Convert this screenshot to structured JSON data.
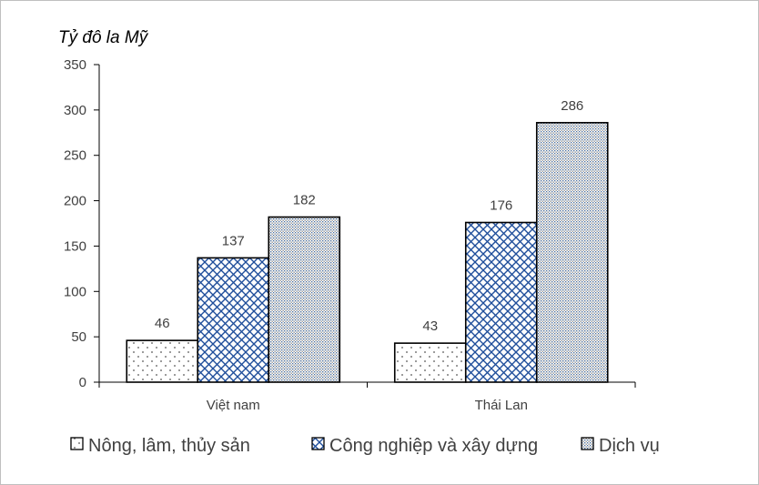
{
  "chart_data": {
    "type": "bar",
    "ylabel": "Tỷ đô la Mỹ",
    "categories": [
      "Việt nam",
      "Thái Lan"
    ],
    "ylim": [
      0,
      350
    ],
    "yticks": [
      0,
      50,
      100,
      150,
      200,
      250,
      300,
      350
    ],
    "grid": false,
    "legend_position": "bottom",
    "series": [
      {
        "name": "Nông, lâm, thủy sản",
        "values": [
          46,
          43
        ],
        "pattern": "dots"
      },
      {
        "name": "Công nghiệp và xây dựng",
        "values": [
          137,
          176
        ],
        "pattern": "crosshatch",
        "color": "#1f4e9b"
      },
      {
        "name": "Dịch vụ",
        "values": [
          182,
          286
        ],
        "pattern": "fine-dots"
      }
    ]
  }
}
